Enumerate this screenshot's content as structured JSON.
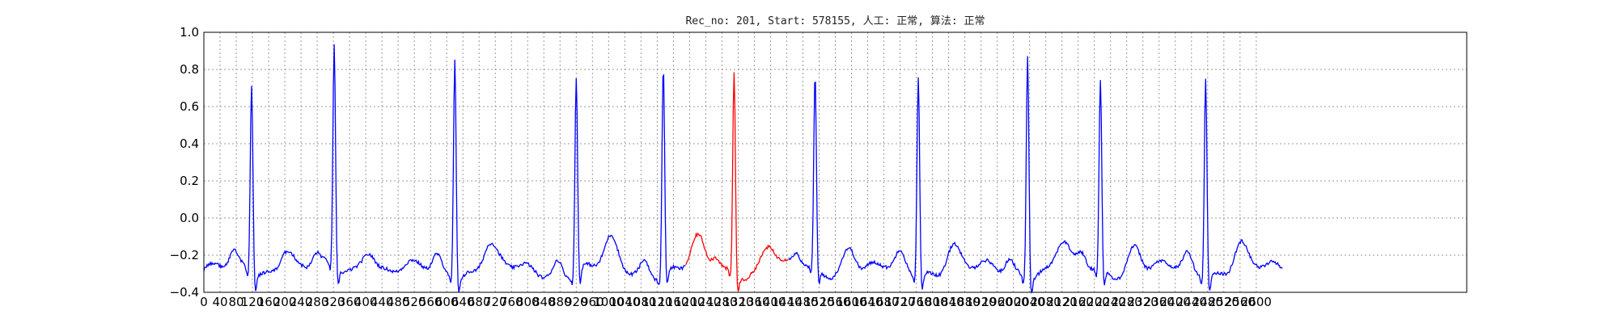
{
  "chart_data": {
    "type": "line",
    "title": "Rec_no: 201, Start: 578155, 人工: 正常, 算法: 正常",
    "xlabel": "",
    "ylabel": "",
    "xlim": [
      0,
      3120
    ],
    "ylim": [
      -0.4,
      1.0
    ],
    "y_ticks": [
      "1.0",
      "0.8",
      "0.6",
      "0.4",
      "0.2",
      "0.0",
      "−0.2",
      "−0.4"
    ],
    "y_tick_values": [
      1.0,
      0.8,
      0.6,
      0.4,
      0.2,
      0.0,
      -0.2,
      -0.4
    ],
    "x_tick_values": [
      0,
      40,
      80,
      120,
      160,
      200,
      240,
      280,
      320,
      360,
      400,
      440,
      480,
      520,
      560,
      600,
      640,
      680,
      720,
      760,
      800,
      840,
      880,
      920,
      960,
      1000,
      1040,
      1080,
      1120,
      1160,
      1200,
      1240,
      1280,
      1320,
      1360,
      1400,
      1440,
      1480,
      1520,
      1560,
      1600,
      1640,
      1680,
      1720,
      1760,
      1800,
      1840,
      1880,
      1920,
      1960,
      2000,
      2040,
      2080,
      2120,
      2160,
      2200,
      2240,
      2280,
      2320,
      2360,
      2400,
      2440,
      2480,
      2520,
      2560,
      2600
    ],
    "grid": true,
    "series": [
      {
        "color": "#0000ff",
        "segment": "before",
        "x_range": [
          0,
          1190
        ],
        "beats_at": [
          118,
          322,
          620,
          920,
          1135
        ],
        "beat_peaks": [
          0.74,
          0.91,
          0.9,
          0.77,
          0.85
        ]
      },
      {
        "color": "#ff0000",
        "segment": "highlighted",
        "x_range": [
          1190,
          1445
        ],
        "beats_at": [
          1310
        ],
        "beat_peaks": [
          0.81
        ]
      },
      {
        "color": "#0000ff",
        "segment": "after",
        "x_range": [
          1445,
          2665
        ],
        "beats_at": [
          1510,
          1765,
          2035,
          2215,
          2475
        ],
        "beat_peaks": [
          0.76,
          0.79,
          0.92,
          0.73,
          0.79
        ]
      }
    ],
    "baseline": -0.28,
    "t_wave_height": 0.14
  }
}
